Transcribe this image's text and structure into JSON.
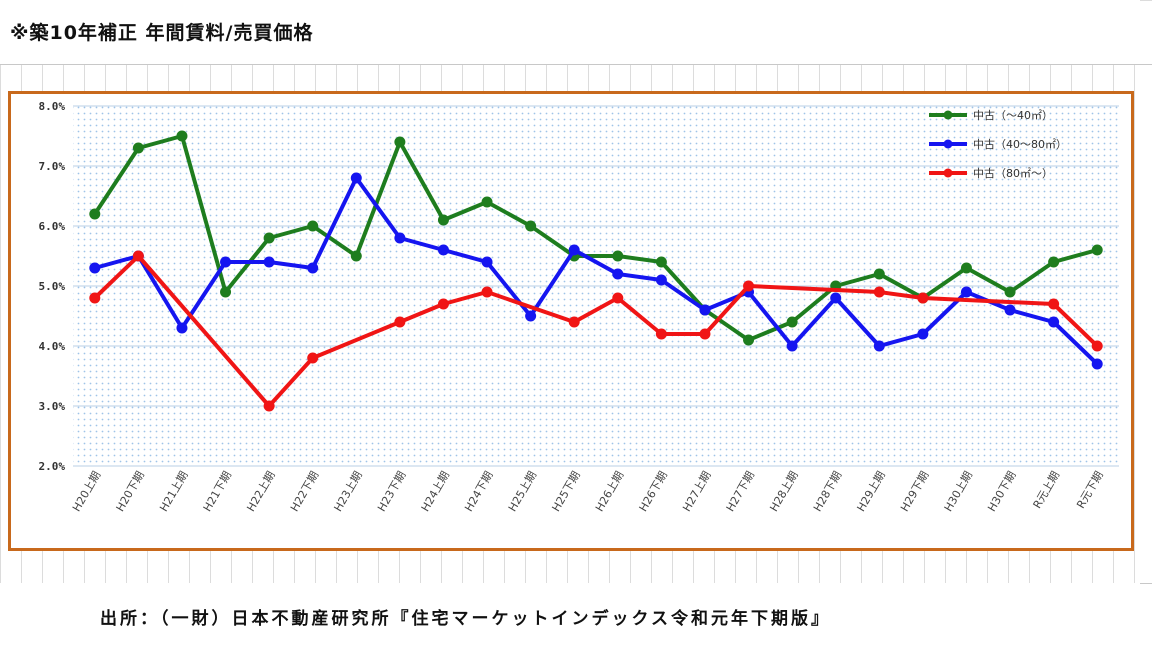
{
  "page": {
    "title": "※築10年補正 年間賃料/売買価格",
    "source": "出所：（一財）日本不動産研究所『住宅マーケットインデックス令和元年下期版』"
  },
  "chart_data": {
    "type": "line",
    "title": "",
    "xlabel": "",
    "ylabel": "",
    "ylim": [
      0.02,
      0.08
    ],
    "yticks": [
      "8.0%",
      "7.0%",
      "6.0%",
      "5.0%",
      "4.0%",
      "3.0%",
      "2.0%"
    ],
    "grid": true,
    "legend": "top-right",
    "categories": [
      "H20上期",
      "H20下期",
      "H21上期",
      "H21下期",
      "H22上期",
      "H22下期",
      "H23上期",
      "H23下期",
      "H24上期",
      "H24下期",
      "H25上期",
      "H25下期",
      "H26上期",
      "H26下期",
      "H27上期",
      "H27下期",
      "H28上期",
      "H28下期",
      "H29上期",
      "H29下期",
      "H30上期",
      "H30下期",
      "R元上期",
      "R元下期"
    ],
    "series": [
      {
        "name": "中古（～40㎡）",
        "color": "#1e7d1e",
        "values": [
          0.062,
          0.073,
          0.075,
          0.049,
          0.058,
          0.06,
          0.055,
          0.074,
          0.061,
          0.064,
          0.06,
          0.055,
          0.055,
          0.054,
          0.046,
          0.041,
          0.044,
          0.05,
          0.052,
          0.048,
          0.053,
          0.049,
          0.054,
          0.056
        ]
      },
      {
        "name": "中古（40～80㎡）",
        "color": "#1515f0",
        "values": [
          0.053,
          0.055,
          0.043,
          0.054,
          0.054,
          0.053,
          0.068,
          0.058,
          0.056,
          0.054,
          0.045,
          0.056,
          0.052,
          0.051,
          0.046,
          0.049,
          0.04,
          0.048,
          0.04,
          0.042,
          0.049,
          0.046,
          0.044,
          0.037
        ]
      },
      {
        "name": "中古（80㎡～）",
        "color": "#f01515",
        "values": [
          0.048,
          0.055,
          null,
          null,
          0.03,
          0.038,
          null,
          0.044,
          0.047,
          0.049,
          null,
          0.044,
          0.048,
          0.042,
          0.042,
          0.05,
          null,
          null,
          0.049,
          0.048,
          null,
          null,
          0.047,
          0.04
        ]
      }
    ]
  }
}
